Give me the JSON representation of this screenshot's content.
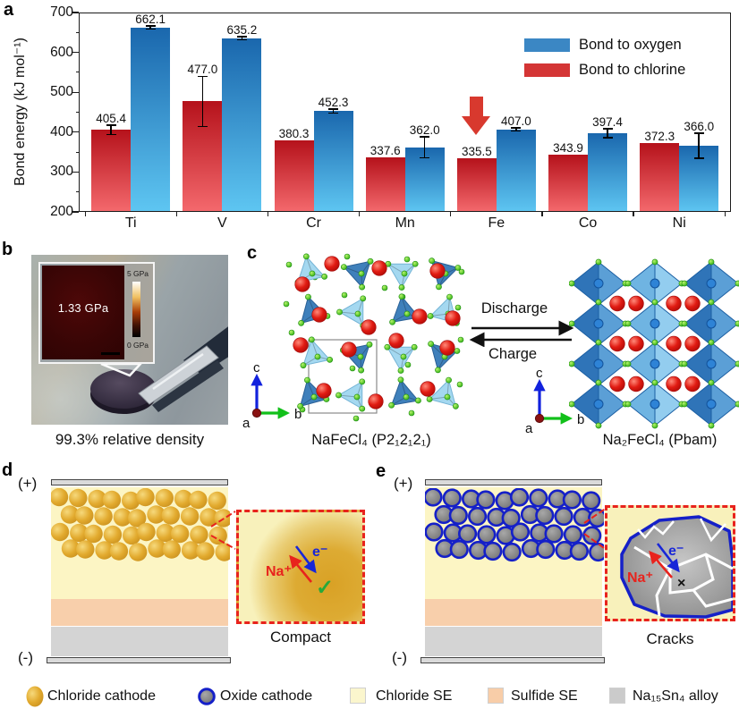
{
  "panels": {
    "a": "a",
    "b": "b",
    "c": "c",
    "d": "d",
    "e": "e"
  },
  "chart_data": {
    "type": "bar",
    "title": "",
    "ylabel": "Bond energy (kJ mol⁻¹)",
    "ylim": [
      200,
      700
    ],
    "yticks": [
      200,
      300,
      400,
      500,
      600,
      700
    ],
    "grid": false,
    "legend_position": "top-right",
    "categories": [
      "Ti",
      "V",
      "Cr",
      "Mn",
      "Fe",
      "Co",
      "Ni"
    ],
    "series": [
      {
        "name": "Bond to chlorine",
        "legend_color": "#d43535",
        "color_top": "#b5121b",
        "color_bottom": "#f4696d",
        "values": [
          405.4,
          477.0,
          380.3,
          337.6,
          335.5,
          343.9,
          372.3
        ],
        "value_labels": [
          "405.4",
          "477.0",
          "380.3",
          "337.6",
          "335.5",
          "343.9",
          "372.3"
        ],
        "errors": [
          12,
          63,
          0,
          0,
          0,
          0,
          0
        ]
      },
      {
        "name": "Bond to oxygen",
        "legend_color": "#3b87c4",
        "color_top": "#1a67ad",
        "color_bottom": "#5ec6f2",
        "values": [
          662.1,
          635.2,
          452.3,
          362.0,
          407.0,
          397.4,
          366.0
        ],
        "value_labels": [
          "662.1",
          "635.2",
          "452.3",
          "362.0",
          "407.0",
          "397.4",
          "366.0"
        ],
        "errors": [
          4,
          4,
          5,
          26,
          4,
          11,
          31
        ]
      }
    ],
    "annotation": {
      "shape": "down-arrow",
      "target_category": "Fe",
      "target_series": "Bond to chlorine",
      "color": "#d8392e"
    }
  },
  "panel_b": {
    "inset_value": "1.33 GPa",
    "scale_top": "5 GPa",
    "scale_bottom": "0 GPa",
    "caption": "99.3% relative density"
  },
  "panel_c": {
    "discharge": "Discharge",
    "charge": "Charge",
    "left_formula": "NaFeCl₄ (P2₁2₁2₁)",
    "right_formula": "Na₂FeCl₄ (Pbam)",
    "axis": {
      "a": "a",
      "b": "b",
      "c": "c"
    }
  },
  "panel_d": {
    "positive": "(+)",
    "negative": "(-)",
    "na_ion": "Na⁺",
    "electron": "e⁻",
    "check_mark": "✓",
    "caption": "Compact",
    "na_color": "#e8231d",
    "electron_color": "#1826d8",
    "check_color": "#27a93a"
  },
  "panel_e": {
    "positive": "(+)",
    "negative": "(-)",
    "na_ion": "Na⁺",
    "electron": "e⁻",
    "fail_mark": "×",
    "caption": "Cracks",
    "na_color": "#e8231d",
    "electron_color": "#1826d8"
  },
  "legend": {
    "items": [
      {
        "label": "Chloride cathode",
        "swatch": "gold-sphere",
        "color": "#e2aa2e"
      },
      {
        "label": "Oxide cathode",
        "swatch": "gray-sphere-blue-ring",
        "color": "#7d7d7d",
        "border": "#1520c8"
      },
      {
        "label": "Chloride SE",
        "swatch": "square",
        "color": "#fbf6cd"
      },
      {
        "label": "Sulfide SE",
        "swatch": "square",
        "color": "#f8cda8"
      },
      {
        "label": "Na₁₅Sn₄ alloy",
        "swatch": "square",
        "color": "#cbcbcb"
      }
    ]
  }
}
